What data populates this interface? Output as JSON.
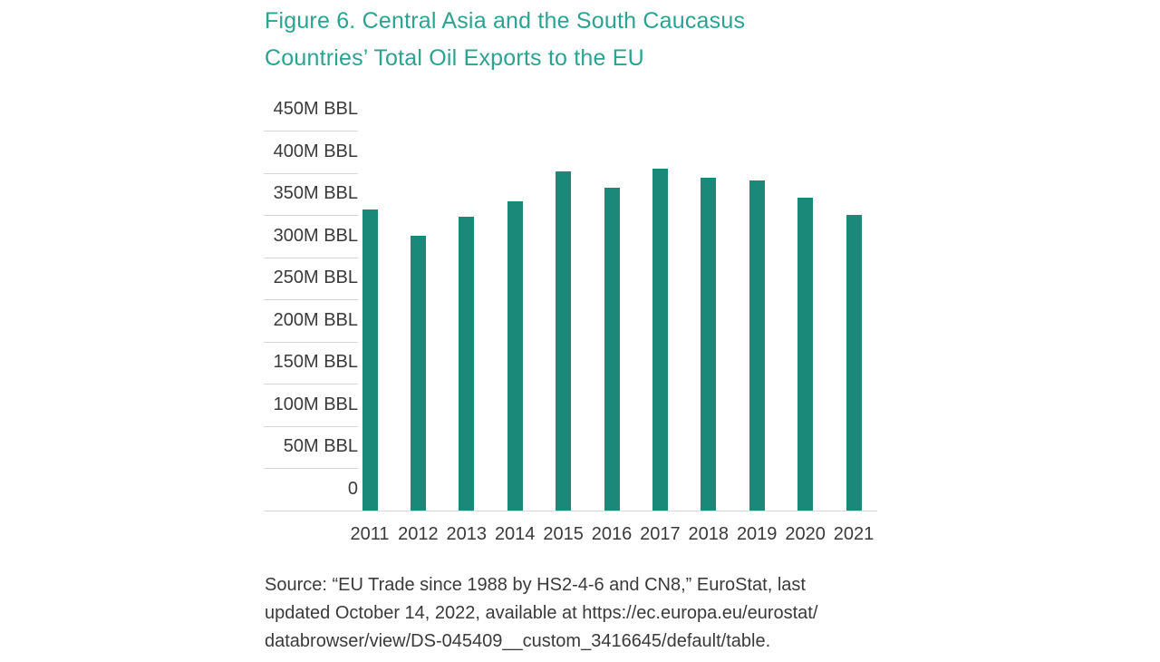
{
  "chart_data": {
    "type": "bar",
    "title": "Figure 6. Central Asia and the South Caucasus Countries’ Total Oil Exports to the EU",
    "title_lines": [
      "Figure 6. Central Asia and the South Caucasus",
      "Countries’ Total Oil Exports to the EU"
    ],
    "categories": [
      "2011",
      "2012",
      "2013",
      "2014",
      "2015",
      "2016",
      "2017",
      "2018",
      "2019",
      "2020",
      "2021"
    ],
    "values": [
      357,
      325,
      348,
      366,
      402,
      382,
      405,
      394,
      391,
      371,
      350
    ],
    "unit": "M BBL",
    "xlabel": "",
    "ylabel": "",
    "ylim": [
      0,
      450
    ],
    "ytick_step": 50,
    "ytick_labels": [
      "450M BBL",
      "400M BBL",
      "350M BBL",
      "300M BBL",
      "250M BBL",
      "200M BBL",
      "150M BBL",
      "100M BBL",
      "50M BBL",
      "0"
    ],
    "legend": "none",
    "grid": "short tick lines under y-axis labels; full-width baseline at zero",
    "colors": {
      "bar": "#1a8979",
      "title": "#2aa392",
      "axis_text": "#3a3a3a",
      "gridline": "#d8d8d8"
    }
  },
  "source": {
    "lines": [
      "Source: “EU Trade since 1988 by HS2-4-6 and CN8,” EuroStat, last",
      "updated October 14, 2022, available at https://ec.europa.eu/eurostat/",
      "databrowser/view/DS-045409__custom_3416645/default/table."
    ],
    "text": "Source: “EU Trade since 1988 by HS2-4-6 and CN8,” EuroStat, last updated October 14, 2022, available at https://ec.europa.eu/eurostat/databrowser/view/DS-045409__custom_3416645/default/table."
  }
}
